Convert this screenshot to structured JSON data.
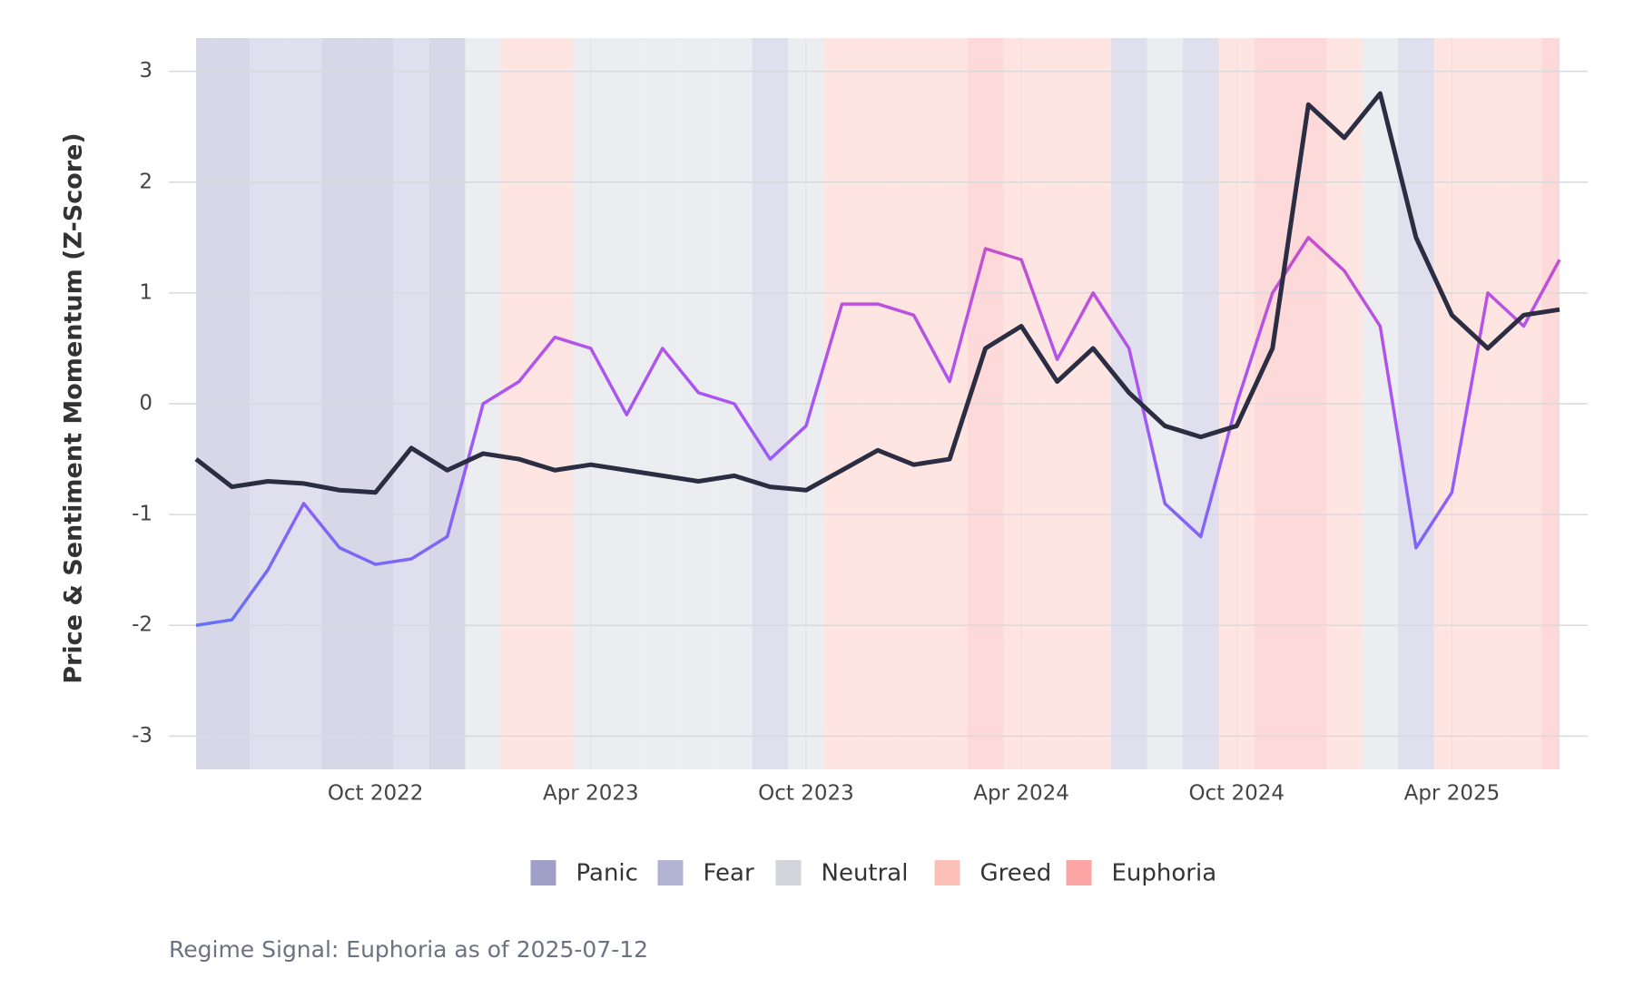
{
  "chart_data": {
    "type": "line",
    "y_label": "Price & Sentiment Momentum (Z-Score)",
    "caption": "Regime Signal: Euphoria as of 2025-07-12",
    "x": [
      "2022-05",
      "2022-06",
      "2022-07",
      "2022-08",
      "2022-09",
      "2022-10",
      "2022-11",
      "2022-12",
      "2023-01",
      "2023-02",
      "2023-03",
      "2023-04",
      "2023-05",
      "2023-06",
      "2023-07",
      "2023-08",
      "2023-09",
      "2023-10",
      "2023-11",
      "2023-12",
      "2024-01",
      "2024-02",
      "2024-03",
      "2024-04",
      "2024-05",
      "2024-06",
      "2024-07",
      "2024-08",
      "2024-09",
      "2024-10",
      "2024-11",
      "2024-12",
      "2025-01",
      "2025-02",
      "2025-03",
      "2025-04",
      "2025-05",
      "2025-06",
      "2025-07"
    ],
    "regimes": [
      "Panic",
      "Panic",
      "Fear",
      "Fear",
      "Panic",
      "Panic",
      "Fear",
      "Panic",
      "Neutral",
      "Greed",
      "Greed",
      "Neutral",
      "Neutral",
      "Neutral",
      "Neutral",
      "Neutral",
      "Fear",
      "Neutral",
      "Greed",
      "Greed",
      "Greed",
      "Greed",
      "Euphoria",
      "Greed",
      "Greed",
      "Greed",
      "Fear",
      "Neutral",
      "Fear",
      "Greed",
      "Euphoria",
      "Euphoria",
      "Greed",
      "Neutral",
      "Fear",
      "Greed",
      "Greed",
      "Greed",
      "Euphoria"
    ],
    "regime_legend": [
      {
        "name": "Panic",
        "color": "#a09fc8"
      },
      {
        "name": "Fear",
        "color": "#b3b3d3"
      },
      {
        "name": "Neutral",
        "color": "#d1d5db"
      },
      {
        "name": "Greed",
        "color": "#fcc0b8"
      },
      {
        "name": "Euphoria",
        "color": "#fca5a5"
      }
    ],
    "series": [
      {
        "color": "#2b2d42",
        "values": [
          -0.5,
          -0.75,
          -0.7,
          -0.72,
          -0.78,
          -0.8,
          -0.4,
          -0.6,
          -0.45,
          -0.5,
          -0.6,
          -0.55,
          -0.6,
          -0.65,
          -0.7,
          -0.65,
          -0.75,
          -0.78,
          -0.6,
          -0.42,
          -0.55,
          -0.5,
          0.5,
          0.7,
          0.2,
          0.5,
          0.1,
          -0.2,
          -0.3,
          -0.2,
          0.5,
          2.7,
          2.4,
          2.8,
          1.5,
          0.8,
          0.5,
          0.8,
          0.85
        ]
      },
      {
        "color": "#a855f7",
        "colorscale": [
          "#3b82f6",
          "#a855f7",
          "#ec4899"
        ],
        "values": [
          -2.0,
          -1.95,
          -1.5,
          -0.9,
          -1.3,
          -1.45,
          -1.4,
          -1.2,
          0.0,
          0.2,
          0.6,
          0.5,
          -0.1,
          0.5,
          0.1,
          0.0,
          -0.5,
          -0.2,
          0.9,
          0.9,
          0.8,
          0.2,
          1.4,
          1.3,
          0.4,
          1.0,
          0.5,
          -0.9,
          -1.2,
          0.0,
          1.0,
          1.5,
          1.2,
          0.7,
          -1.3,
          -0.8,
          1.0,
          0.7,
          1.3
        ]
      }
    ],
    "xlim": [
      "2022-05",
      "2025-07"
    ],
    "xticks": [
      {
        "value": "2022-10",
        "label": "Oct 2022"
      },
      {
        "value": "2023-04",
        "label": "Apr 2023"
      },
      {
        "value": "2023-10",
        "label": "Oct 2023"
      },
      {
        "value": "2024-04",
        "label": "Apr 2024"
      },
      {
        "value": "2024-10",
        "label": "Oct 2024"
      },
      {
        "value": "2025-04",
        "label": "Apr 2025"
      }
    ],
    "ylim": [
      -3.3,
      3.3
    ],
    "yticks": [
      -3,
      -2,
      -1,
      0,
      1,
      2,
      3
    ],
    "grid": true
  }
}
